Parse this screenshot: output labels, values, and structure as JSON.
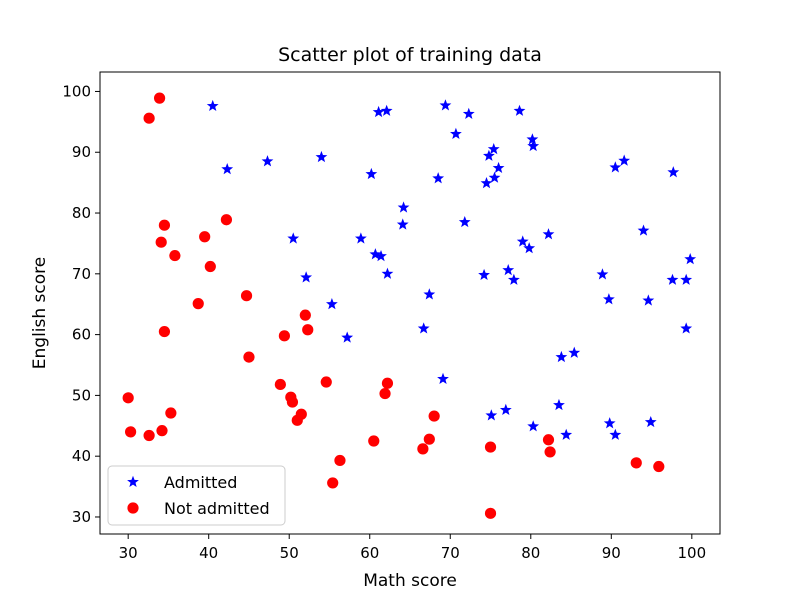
{
  "chart_data": {
    "type": "scatter",
    "title": "Scatter plot of training data",
    "xlabel": "Math score",
    "ylabel": "English score",
    "xlim": [
      26.5,
      103.5
    ],
    "ylim": [
      27.2,
      103.2
    ],
    "xticks": [
      30,
      40,
      50,
      60,
      70,
      80,
      90,
      100
    ],
    "yticks": [
      30,
      40,
      50,
      60,
      70,
      80,
      90,
      100
    ],
    "grid": false,
    "legend_position": "lower-left",
    "series": [
      {
        "name": "Admitted",
        "marker": "star",
        "color": "#0000ff",
        "points": [
          [
            40.5,
            97.6
          ],
          [
            61.1,
            96.6
          ],
          [
            62.1,
            96.8
          ],
          [
            69.4,
            97.7
          ],
          [
            72.3,
            96.3
          ],
          [
            78.6,
            96.8
          ],
          [
            70.7,
            93.0
          ],
          [
            80.2,
            92.1
          ],
          [
            80.3,
            91.0
          ],
          [
            75.4,
            90.5
          ],
          [
            74.8,
            89.4
          ],
          [
            54.0,
            89.2
          ],
          [
            47.3,
            88.5
          ],
          [
            91.6,
            88.6
          ],
          [
            90.5,
            87.5
          ],
          [
            42.3,
            87.2
          ],
          [
            76.0,
            87.4
          ],
          [
            97.7,
            86.7
          ],
          [
            60.2,
            86.4
          ],
          [
            68.5,
            85.7
          ],
          [
            75.5,
            85.8
          ],
          [
            74.5,
            84.9
          ],
          [
            64.2,
            80.9
          ],
          [
            64.1,
            78.1
          ],
          [
            71.8,
            78.5
          ],
          [
            82.2,
            76.5
          ],
          [
            94.0,
            77.1
          ],
          [
            50.5,
            75.8
          ],
          [
            58.9,
            75.8
          ],
          [
            79.0,
            75.3
          ],
          [
            79.8,
            74.2
          ],
          [
            60.7,
            73.2
          ],
          [
            61.4,
            72.9
          ],
          [
            99.8,
            72.4
          ],
          [
            62.2,
            70.0
          ],
          [
            77.2,
            70.6
          ],
          [
            74.2,
            69.8
          ],
          [
            52.1,
            69.4
          ],
          [
            77.9,
            69.0
          ],
          [
            88.9,
            69.9
          ],
          [
            97.6,
            69.0
          ],
          [
            99.3,
            69.0
          ],
          [
            67.4,
            66.6
          ],
          [
            89.7,
            65.8
          ],
          [
            94.6,
            65.6
          ],
          [
            55.3,
            65.0
          ],
          [
            66.7,
            61.0
          ],
          [
            99.3,
            61.0
          ],
          [
            57.2,
            59.5
          ],
          [
            83.8,
            56.3
          ],
          [
            85.4,
            57.0
          ],
          [
            69.1,
            52.7
          ],
          [
            83.5,
            48.4
          ],
          [
            75.1,
            46.7
          ],
          [
            76.9,
            47.6
          ],
          [
            89.8,
            45.4
          ],
          [
            94.9,
            45.6
          ],
          [
            80.3,
            44.9
          ],
          [
            84.4,
            43.5
          ],
          [
            90.5,
            43.5
          ]
        ]
      },
      {
        "name": "Not admitted",
        "marker": "circle",
        "color": "#ff0000",
        "points": [
          [
            33.9,
            98.9
          ],
          [
            32.6,
            95.6
          ],
          [
            34.5,
            78.0
          ],
          [
            42.2,
            78.9
          ],
          [
            39.5,
            76.1
          ],
          [
            34.1,
            75.2
          ],
          [
            35.8,
            73.0
          ],
          [
            40.2,
            71.2
          ],
          [
            44.7,
            66.4
          ],
          [
            38.7,
            65.1
          ],
          [
            52.0,
            63.2
          ],
          [
            52.3,
            60.8
          ],
          [
            34.5,
            60.5
          ],
          [
            49.4,
            59.8
          ],
          [
            45.0,
            56.3
          ],
          [
            54.6,
            52.2
          ],
          [
            62.2,
            52.0
          ],
          [
            48.9,
            51.8
          ],
          [
            61.9,
            50.3
          ],
          [
            50.2,
            49.7
          ],
          [
            30.0,
            49.6
          ],
          [
            50.4,
            48.9
          ],
          [
            35.3,
            47.1
          ],
          [
            51.5,
            46.9
          ],
          [
            68.0,
            46.6
          ],
          [
            51.0,
            45.9
          ],
          [
            30.3,
            44.0
          ],
          [
            34.2,
            44.2
          ],
          [
            32.6,
            43.4
          ],
          [
            60.5,
            42.5
          ],
          [
            67.4,
            42.8
          ],
          [
            82.2,
            42.7
          ],
          [
            75.0,
            41.5
          ],
          [
            66.6,
            41.2
          ],
          [
            82.4,
            40.7
          ],
          [
            56.3,
            39.3
          ],
          [
            93.1,
            38.9
          ],
          [
            95.9,
            38.3
          ],
          [
            55.4,
            35.6
          ],
          [
            75.0,
            30.6
          ]
        ]
      }
    ]
  }
}
